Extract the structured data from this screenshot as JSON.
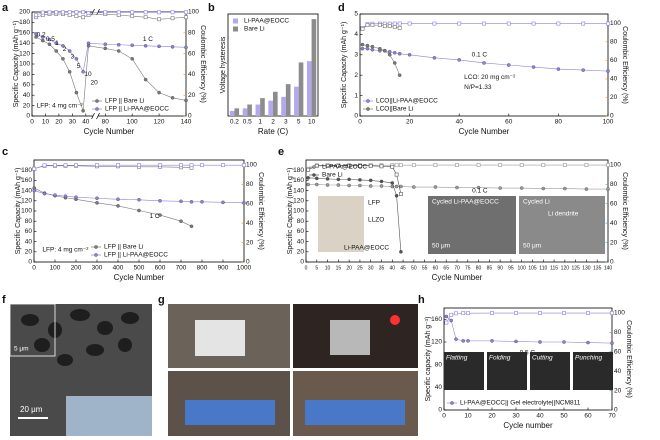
{
  "panel_labels": [
    "a",
    "b",
    "d",
    "c",
    "e",
    "f",
    "g",
    "h"
  ],
  "images": {
    "f": {
      "inset_scale": "5 μm",
      "main_scale": "20 μm"
    },
    "e": {
      "battery": [
        "LFP",
        "LLZO",
        "Li-PAA@EOCC"
      ],
      "sem_left": [
        "Cycled Li-PAA@EOCC",
        "50 μm"
      ],
      "sem_right": [
        "Cycled Li",
        "Li dendrite",
        "50 μm"
      ]
    },
    "h": [
      "Flatting",
      "Folding",
      "Cutting",
      "Punching"
    ]
  },
  "chart_data": [
    {
      "type": "line",
      "xlabel": "Cycle Number",
      "ylabel": "Specific Capacity (mAh g⁻¹)",
      "y2label": "Coulombic Efficiency (%)",
      "y2color": "#e8891f",
      "x": [
        3,
        8,
        13,
        18,
        23,
        28,
        33,
        38,
        42,
        80,
        90,
        100,
        110,
        120,
        130,
        140
      ],
      "xlim": [
        0,
        140
      ],
      "xbreak": [
        45,
        75
      ],
      "xticks": [
        0,
        10,
        20,
        30,
        40,
        80,
        100,
        120,
        140
      ],
      "ylim": [
        0,
        200
      ],
      "yticks": [
        0,
        20,
        40,
        60,
        80,
        100,
        120,
        140,
        160,
        180,
        200
      ],
      "y2lim": [
        0,
        100
      ],
      "y2ticks": [
        0,
        20,
        40,
        60,
        80,
        100
      ],
      "legend": "lower-right",
      "series": [
        {
          "name": "LFP || Bare Li",
          "color": "#7a7a7a",
          "marker": "circle",
          "values": [
            152,
            145,
            138,
            125,
            110,
            85,
            45,
            10,
            135,
            130,
            125,
            110,
            70,
            45,
            35,
            30
          ]
        },
        {
          "name": "LFP || Li-PAA@EOCC",
          "color": "#8f7fe0",
          "marker": "circle",
          "values": [
            158,
            152,
            147,
            140,
            135,
            125,
            110,
            85,
            140,
            138,
            137,
            136,
            135,
            134,
            133,
            132
          ]
        },
        {
          "color": "#7a7a7a",
          "marker": "square",
          "axis": "y2",
          "values": [
            95,
            97,
            98,
            98,
            98,
            97,
            96,
            95,
            97,
            98,
            97,
            96,
            95,
            93,
            94,
            95
          ]
        },
        {
          "color": "#8f7fe0",
          "marker": "square",
          "axis": "y2",
          "values": [
            97,
            99.5,
            99.6,
            99.7,
            99.7,
            99.8,
            99.8,
            99.8,
            99,
            99.7,
            99.7,
            99.7,
            99.7,
            99.7,
            99.7,
            99.7
          ]
        }
      ],
      "annotations": [
        "0.2",
        "0.5",
        "1",
        "2",
        "3",
        "5",
        "10",
        "20",
        "1 C",
        "LFP: 4 mg cm⁻²"
      ]
    },
    {
      "type": "bar",
      "xlabel": "Rate (C)",
      "ylabel": "Voltage hysteresis",
      "categories": [
        "0.2",
        "0.5",
        "1",
        "2",
        "3",
        "5",
        "10"
      ],
      "ylim": [
        0,
        800
      ],
      "legend": "upper-left",
      "series": [
        {
          "name": "Li-PAA@EOCC",
          "color": "#b3a8ee",
          "values": [
            40,
            60,
            90,
            120,
            150,
            230,
            430
          ]
        },
        {
          "name": "Bare Li",
          "color": "#8c8c8c",
          "values": [
            60,
            90,
            140,
            190,
            250,
            420,
            760
          ]
        }
      ]
    },
    {
      "type": "line",
      "xlabel": "Cycle Number",
      "ylabel": "Specific Capacity (mAh g⁻¹)",
      "y2label": "Coulombic Efficiency (%)",
      "y2color": "#e8891f",
      "x": [
        1,
        3,
        5,
        8,
        10,
        12,
        14,
        16,
        20,
        30,
        40,
        50,
        60,
        70,
        80,
        90,
        100
      ],
      "xlim": [
        0,
        100
      ],
      "xticks": [
        0,
        20,
        40,
        60,
        80,
        100
      ],
      "ylim": [
        0,
        5
      ],
      "yticks": [
        0,
        1,
        2,
        3,
        4,
        5
      ],
      "y2lim": [
        0,
        110
      ],
      "y2ticks": [
        0,
        20,
        40,
        60,
        80,
        100
      ],
      "legend": "lower-left",
      "series": [
        {
          "name": "LCO||Li-PAA@EOCC",
          "color": "#8f7fe0",
          "marker": "circle",
          "values": [
            3.3,
            3.3,
            3.25,
            3.2,
            3.2,
            3.15,
            3.1,
            3.05,
            3.0,
            2.85,
            2.75,
            2.6,
            2.5,
            2.4,
            2.3,
            2.25,
            2.2
          ]
        },
        {
          "name": "LCO||Bare Li",
          "color": "#7a7a7a",
          "marker": "circle",
          "values": [
            3.5,
            3.45,
            3.4,
            3.3,
            3.2,
            3.0,
            2.6,
            2.0,
            null,
            null,
            null,
            null,
            null,
            null,
            null,
            null,
            null
          ]
        },
        {
          "color": "#8f7fe0",
          "marker": "square",
          "axis": "y2",
          "values": [
            95,
            99,
            99.5,
            99.6,
            99.6,
            99.6,
            99.7,
            99.7,
            99.7,
            99.7,
            99.7,
            99.7,
            99.7,
            99.7,
            99.7,
            99.7,
            99.7
          ]
        },
        {
          "color": "#7a7a7a",
          "marker": "square",
          "axis": "y2",
          "values": [
            94,
            98,
            98,
            98,
            97,
            97,
            96,
            95,
            null,
            null,
            null,
            null,
            null,
            null,
            null,
            null,
            null
          ]
        }
      ],
      "annotations": [
        "0.1 C",
        "LCO: 20 mg cm⁻²",
        "N/P=1.33"
      ]
    },
    {
      "type": "line",
      "xlabel": "Cycle Number",
      "ylabel": "Specific Capacity (mAh g⁻¹)",
      "y2label": "Coulombic Efficiency (%)",
      "y2color": "#e8891f",
      "x": [
        1,
        50,
        100,
        150,
        200,
        300,
        400,
        500,
        600,
        700,
        750,
        800,
        900,
        1000
      ],
      "xlim": [
        0,
        1000
      ],
      "xticks": [
        0,
        100,
        200,
        300,
        400,
        500,
        600,
        700,
        800,
        900,
        1000
      ],
      "ylim": [
        0,
        200
      ],
      "yticks": [
        0,
        20,
        40,
        60,
        80,
        100,
        120,
        140,
        160,
        180
      ],
      "y2lim": [
        0,
        105
      ],
      "y2ticks": [
        0,
        20,
        40,
        60,
        80,
        100
      ],
      "legend": "lower-center",
      "series": [
        {
          "name": "LFP || Bare Li",
          "color": "#7a7a7a",
          "marker": "circle",
          "values": [
            145,
            135,
            130,
            126,
            123,
            116,
            110,
            101,
            92,
            80,
            70,
            null,
            null,
            null
          ]
        },
        {
          "name": "LFP || Li-PAA@EOCC",
          "color": "#8f7fe0",
          "marker": "circle",
          "values": [
            140,
            134,
            131,
            129,
            127,
            125,
            123,
            122,
            120,
            119,
            118,
            118,
            117,
            116
          ]
        },
        {
          "color": "#7a7a7a",
          "marker": "square",
          "axis": "y2",
          "values": [
            96,
            99,
            99,
            99,
            99,
            98.5,
            98.5,
            98,
            98,
            97.5,
            97,
            null,
            null,
            null
          ]
        },
        {
          "color": "#8f7fe0",
          "marker": "square",
          "axis": "y2",
          "values": [
            96,
            99.5,
            99.6,
            99.6,
            99.6,
            99.7,
            99.7,
            99.7,
            99.7,
            99.7,
            99.7,
            99.7,
            99.7,
            99.7
          ]
        }
      ],
      "annotations": [
        "1 C",
        "LFP: 4 mg cm⁻²"
      ]
    },
    {
      "type": "line",
      "xlabel": "Cycle Number",
      "ylabel": "Specific Capacity (mAh g⁻¹)",
      "y2label": "Coulombic Efficiency (%)",
      "y2color": "#3a9ad9",
      "x": [
        1,
        5,
        10,
        15,
        20,
        25,
        30,
        35,
        40,
        42,
        44,
        50,
        60,
        70,
        80,
        90,
        100,
        110,
        120,
        130,
        140
      ],
      "xlim": [
        0,
        140
      ],
      "xticks": [
        0,
        5,
        10,
        15,
        20,
        25,
        30,
        35,
        40,
        45,
        50,
        55,
        60,
        65,
        70,
        75,
        80,
        85,
        90,
        95,
        100,
        105,
        110,
        115,
        120,
        125,
        130,
        135,
        140
      ],
      "ylim": [
        0,
        200
      ],
      "yticks": [
        0,
        20,
        40,
        60,
        80,
        100,
        120,
        140,
        160,
        180
      ],
      "y2lim": [
        0,
        105
      ],
      "y2ticks": [
        0,
        20,
        40,
        60,
        80,
        100
      ],
      "legend": "upper-left",
      "series": [
        {
          "name": "Li-PAA@EOCC",
          "color": "#9a9a9a",
          "marker": "circle",
          "values": [
            152,
            152,
            151,
            151,
            150,
            150,
            149,
            149,
            148,
            148,
            148,
            147,
            147,
            146,
            146,
            145,
            145,
            144,
            144,
            143,
            143
          ]
        },
        {
          "name": "Bare Li",
          "color": "#555555",
          "marker": "circle",
          "values": [
            165,
            164,
            163,
            162,
            162,
            161,
            160,
            158,
            155,
            130,
            20,
            null,
            null,
            null,
            null,
            null,
            null,
            null,
            null,
            null,
            null
          ]
        },
        {
          "color": "#9a9a9a",
          "marker": "square",
          "axis": "y2",
          "values": [
            96,
            99.5,
            99.6,
            99.6,
            99.7,
            99.7,
            99.7,
            99.7,
            99.7,
            99.7,
            99.7,
            99.7,
            99.8,
            99.8,
            99.8,
            99.8,
            99.8,
            99.8,
            99.8,
            99.8,
            99.8
          ]
        },
        {
          "color": "#555555",
          "marker": "square",
          "axis": "y2",
          "values": [
            95,
            99,
            99,
            99,
            99,
            99,
            99,
            98.5,
            98,
            90,
            70,
            null,
            null,
            null,
            null,
            null,
            null,
            null,
            null,
            null,
            null
          ]
        }
      ],
      "annotations": [
        "0.1 C"
      ]
    },
    {
      "type": "line",
      "xlabel": "Cycle number",
      "ylabel": "Specific capacity (mAh g⁻¹)",
      "y2label": "Coulombic Efficiency (%)",
      "y2color": "#3a9ad9",
      "x": [
        1,
        3,
        5,
        8,
        10,
        20,
        30,
        40,
        50,
        60,
        70
      ],
      "xlim": [
        0,
        70
      ],
      "xticks": [
        0,
        10,
        20,
        30,
        40,
        50,
        60,
        70
      ],
      "ylim": [
        0,
        180
      ],
      "yticks": [
        0,
        40,
        80,
        120,
        160
      ],
      "y2lim": [
        0,
        105
      ],
      "y2ticks": [
        0,
        20,
        40,
        60,
        80,
        100
      ],
      "legend": "lower-left",
      "series": [
        {
          "name": "Li-PAA@EOCC|| Gel electrolyte||NCM811",
          "color": "#8f7fe0",
          "marker": "circle",
          "values": [
            165,
            158,
            125,
            122,
            122,
            122,
            121,
            120,
            120,
            119,
            118
          ]
        },
        {
          "color": "#8f7fe0",
          "marker": "square",
          "axis": "y2",
          "values": [
            90,
            98,
            99.5,
            99.7,
            99.7,
            99.8,
            99.8,
            99.8,
            99.8,
            99.8,
            99.8
          ]
        }
      ],
      "annotations": [
        "0.5 C"
      ]
    }
  ]
}
